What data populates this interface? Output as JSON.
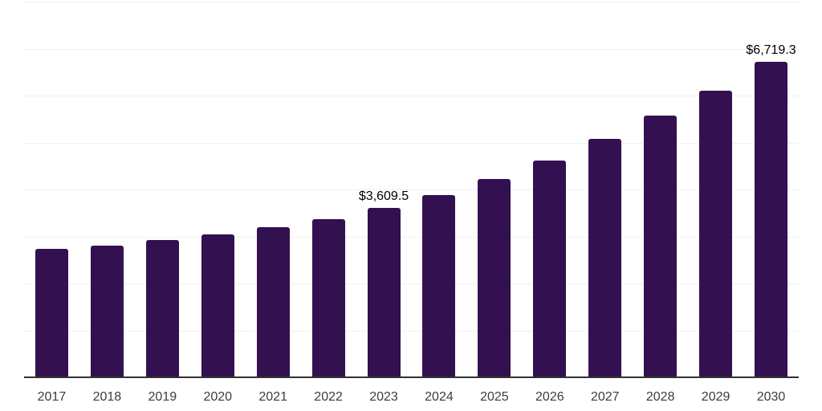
{
  "chart_data": {
    "type": "bar",
    "title": "",
    "xlabel": "",
    "ylabel": "",
    "categories": [
      "2017",
      "2018",
      "2019",
      "2020",
      "2021",
      "2022",
      "2023",
      "2024",
      "2025",
      "2026",
      "2027",
      "2028",
      "2029",
      "2030"
    ],
    "values": [
      2740,
      2810,
      2920,
      3040,
      3190,
      3360,
      3609.5,
      3880,
      4230,
      4620,
      5070,
      5570,
      6110,
      6719.3
    ],
    "data_labels": {
      "2023": "$3,609.5",
      "2030": "$6,719.3"
    },
    "ylim": [
      0,
      8000
    ],
    "gridline_interval": 1000,
    "grid": "horizontal-only",
    "legend": "none",
    "y_tick_labels_visible": false,
    "colors": {
      "bar": "#331150",
      "axis_line": "#323232",
      "gridline": "#f0f0f0",
      "x_tick_text": "#3c3c3c",
      "data_label_text": "#000000",
      "background": "#ffffff"
    }
  }
}
